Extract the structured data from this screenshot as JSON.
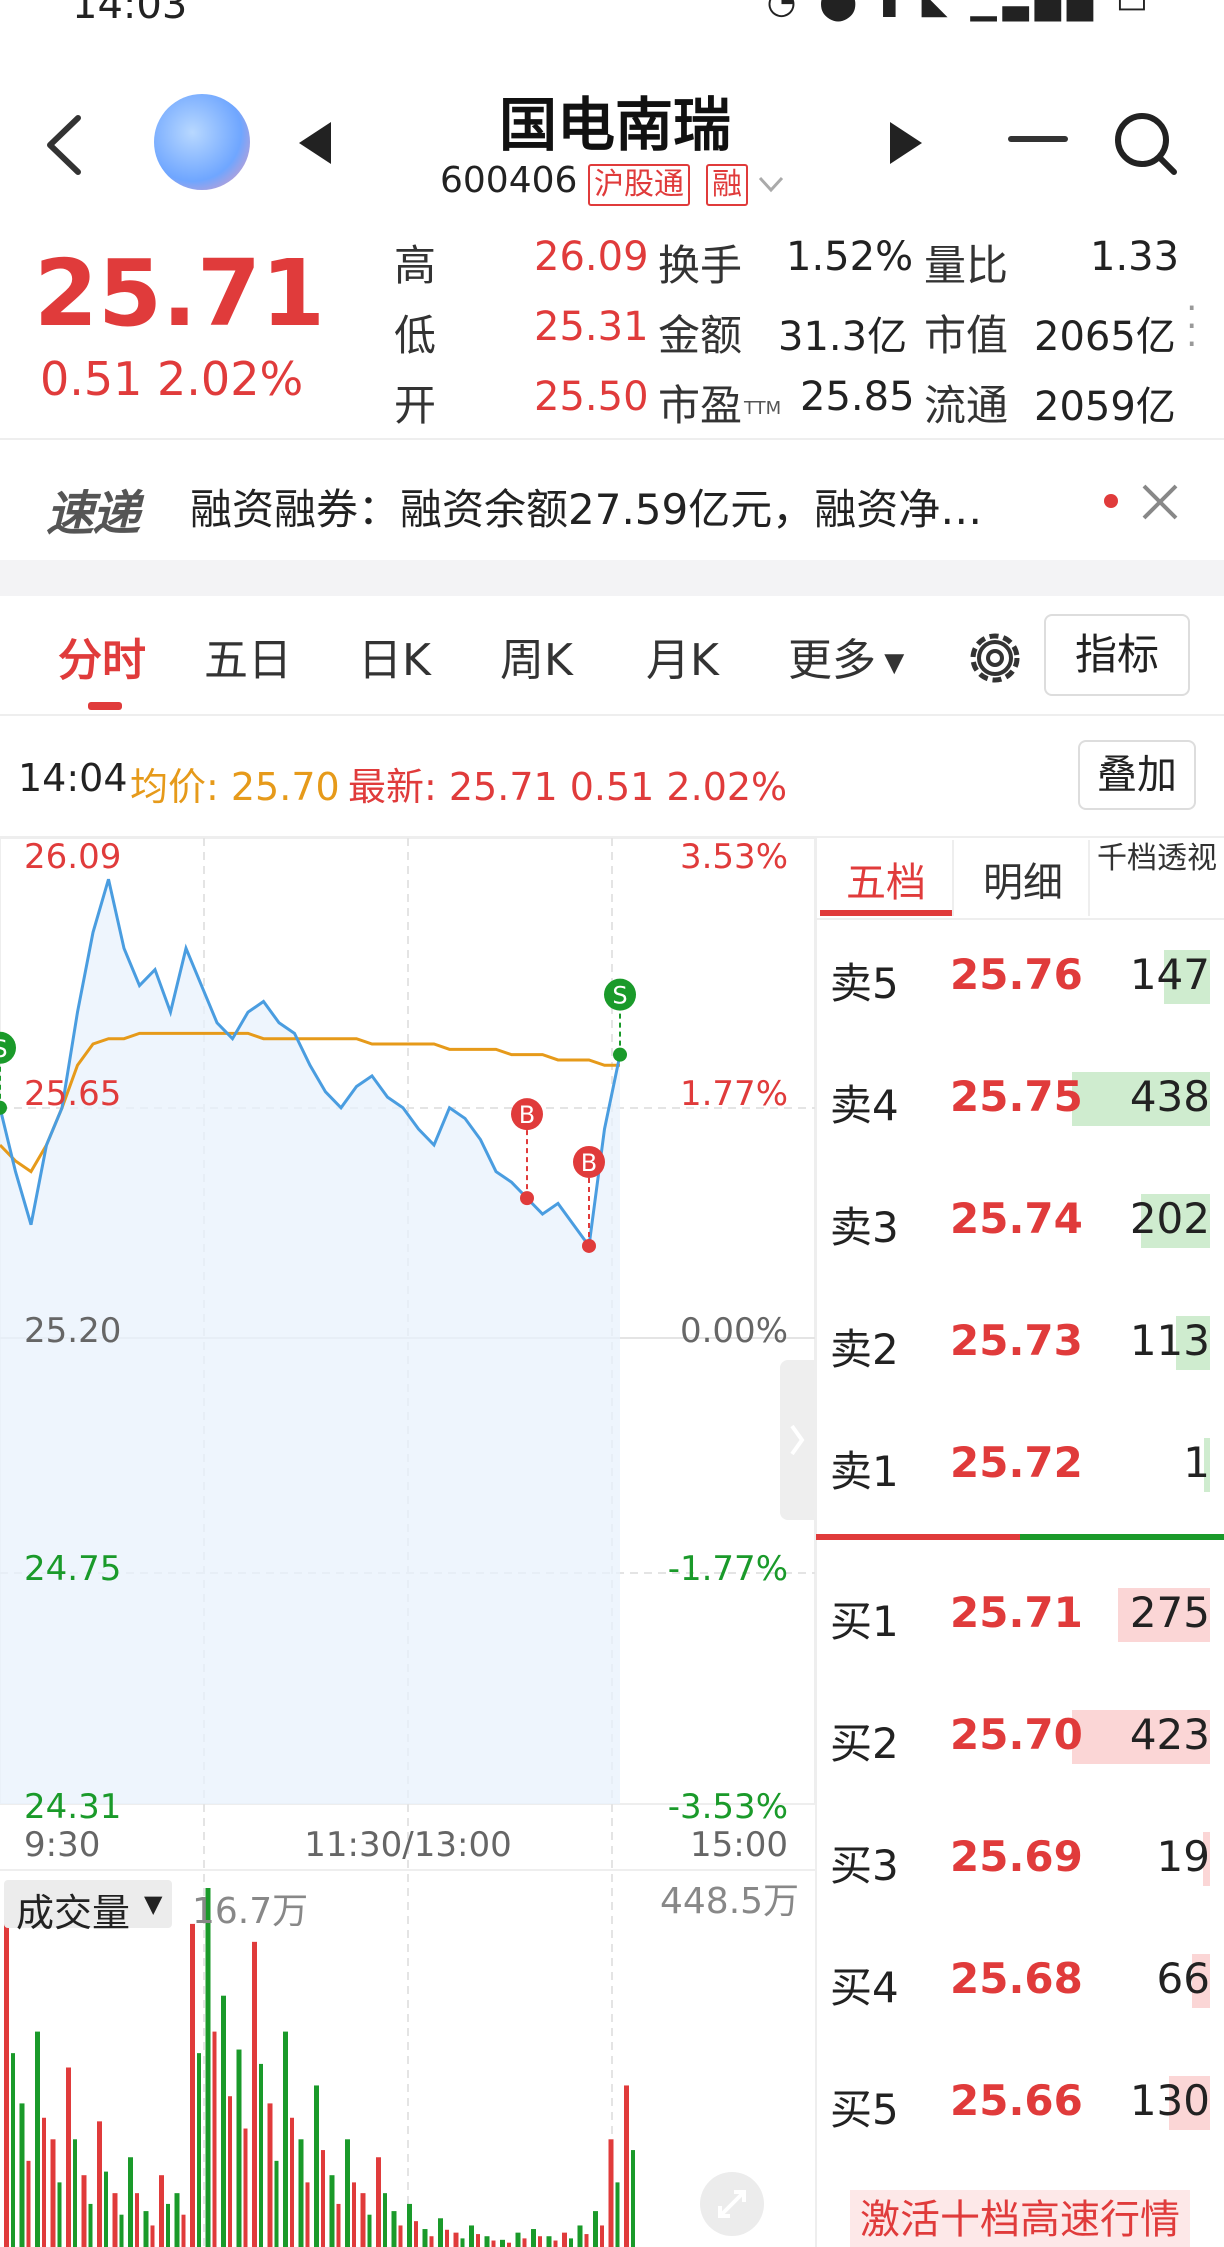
{
  "status_bar": {
    "time": "14:03",
    "icons": [
      "alarm-icon",
      "location-icon",
      "mic-icon",
      "mute-icon",
      "signal-icon",
      "signal-icon",
      "battery-icon"
    ]
  },
  "header": {
    "stock_name": "国电南瑞",
    "stock_code": "600406",
    "badge_hgt": "沪股通",
    "badge_rong": "融"
  },
  "quote": {
    "price": "25.71",
    "change": "0.51  2.02%",
    "high_label": "高",
    "high": "26.09",
    "low_label": "低",
    "low": "25.31",
    "open_label": "开",
    "open": "25.50",
    "turnover_label": "换手",
    "turnover": "1.52%",
    "amount_label": "金额",
    "amount": "31.3亿",
    "pe_label": "市盈",
    "pe_sub": "TTM",
    "pe": "25.85",
    "vol_ratio_label": "量比",
    "vol_ratio": "1.33",
    "mkt_cap_label": "市值",
    "mkt_cap": "2065亿",
    "float_label": "流通",
    "float_cap": "2059亿"
  },
  "news": {
    "logo": "速递",
    "text": "融资融券：融资余额27.59亿元，融资净…"
  },
  "tabs": {
    "fenshi": "分时",
    "wuri": "五日",
    "rik": "日K",
    "zhouk": "周K",
    "yuek": "月K",
    "more": "更多",
    "indicator": "指标"
  },
  "info": {
    "time": "14:04",
    "avg": "均价: 25.70",
    "latest": "最新: 25.71  0.51  2.02%",
    "overlay": "叠加"
  },
  "chart_data": {
    "type": "line",
    "y_left_ticks": [
      "26.09",
      "25.65",
      "25.20",
      "24.75",
      "24.31"
    ],
    "y_right_ticks": [
      "3.53%",
      "1.77%",
      "0.00%",
      "-1.77%",
      "-3.53%"
    ],
    "x_ticks": [
      "9:30",
      "11:30/13:00",
      "15:00"
    ],
    "ylim": [
      24.31,
      26.09
    ],
    "prev_close": 25.2,
    "price_series": [
      25.62,
      25.5,
      25.4,
      25.55,
      25.62,
      25.8,
      25.95,
      26.05,
      25.92,
      25.85,
      25.88,
      25.8,
      25.92,
      25.85,
      25.78,
      25.75,
      25.8,
      25.82,
      25.78,
      25.76,
      25.7,
      25.65,
      25.62,
      25.66,
      25.68,
      25.64,
      25.62,
      25.58,
      25.55,
      25.62,
      25.6,
      25.56,
      25.5,
      25.48,
      25.45,
      25.42,
      25.44,
      25.4,
      25.36,
      25.58,
      25.72
    ],
    "avg_series": [
      25.55,
      25.52,
      25.5,
      25.55,
      25.62,
      25.7,
      25.74,
      25.75,
      25.75,
      25.76,
      25.76,
      25.76,
      25.76,
      25.76,
      25.76,
      25.76,
      25.76,
      25.75,
      25.75,
      25.75,
      25.75,
      25.75,
      25.75,
      25.75,
      25.74,
      25.74,
      25.74,
      25.74,
      25.74,
      25.73,
      25.73,
      25.73,
      25.73,
      25.72,
      25.72,
      25.72,
      25.71,
      25.71,
      25.71,
      25.7,
      25.7
    ],
    "markers": [
      {
        "label": "S",
        "index": 0,
        "color": "#1a9a2a"
      },
      {
        "label": "B",
        "index": 34,
        "color": "#e03b3b"
      },
      {
        "label": "B",
        "index": 38,
        "color": "#e03b3b"
      },
      {
        "label": "S",
        "index": 40,
        "color": "#1a9a2a"
      }
    ],
    "volume_label": "成交量",
    "volume_current": "16.7万",
    "volume_max": "448.5万",
    "volume_series": [
      0.9,
      0.4,
      0.6,
      0.3,
      0.5,
      0.2,
      0.35,
      0.15,
      0.25,
      0.1,
      0.2,
      0.15,
      0.9,
      1.0,
      0.7,
      0.55,
      0.85,
      0.4,
      0.6,
      0.3,
      0.45,
      0.2,
      0.3,
      0.15,
      0.25,
      0.1,
      0.12,
      0.05,
      0.08,
      0.04,
      0.06,
      0.03,
      0.02,
      0.04,
      0.05,
      0.03,
      0.04,
      0.06,
      0.1,
      0.3,
      0.45
    ]
  },
  "order_book": {
    "tabs": {
      "wudang": "五档",
      "mingxi": "明细",
      "qiandang": "千档透视"
    },
    "sells": [
      {
        "label": "卖5",
        "price": "25.76",
        "qty": "147",
        "bar": 0.2
      },
      {
        "label": "卖4",
        "price": "25.75",
        "qty": "438",
        "bar": 0.6
      },
      {
        "label": "卖3",
        "price": "25.74",
        "qty": "202",
        "bar": 0.3
      },
      {
        "label": "卖2",
        "price": "25.73",
        "qty": "113",
        "bar": 0.15
      },
      {
        "label": "卖1",
        "price": "25.72",
        "qty": "1",
        "bar": 0.01
      }
    ],
    "buys": [
      {
        "label": "买1",
        "price": "25.71",
        "qty": "275",
        "bar": 0.4
      },
      {
        "label": "买2",
        "price": "25.70",
        "qty": "423",
        "bar": 0.6
      },
      {
        "label": "买3",
        "price": "25.69",
        "qty": "19",
        "bar": 0.03
      },
      {
        "label": "买4",
        "price": "25.68",
        "qty": "66",
        "bar": 0.08
      },
      {
        "label": "买5",
        "price": "25.66",
        "qty": "130",
        "bar": 0.18
      }
    ],
    "activate": "激活十档高速行情"
  },
  "colors": {
    "up": "#e03b3b",
    "down": "#1a9a2a",
    "avg": "#e69a1a",
    "price_line": "#4a9de0"
  }
}
